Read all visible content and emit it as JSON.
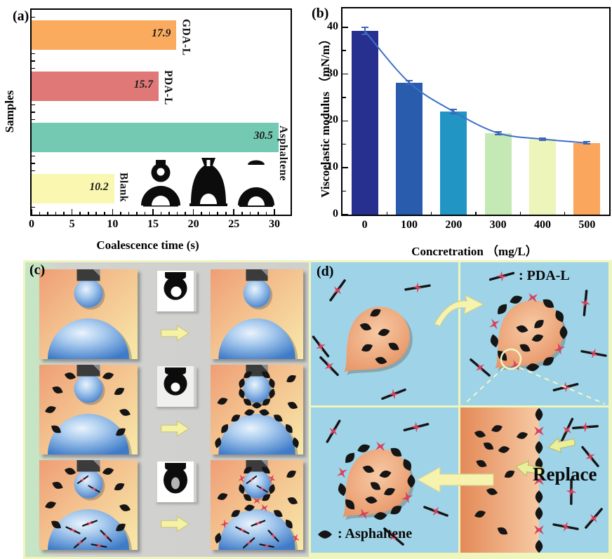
{
  "panels": {
    "a": {
      "tag": "(a)"
    },
    "b": {
      "tag": "(b)"
    },
    "c": {
      "tag": "(c)"
    },
    "d": {
      "tag": "(d)",
      "legend_pdal": ": PDA-L",
      "legend_asphaltene": ": Asphaltene",
      "replace_label": "Replace"
    }
  },
  "chart_data": [
    {
      "type": "bar",
      "orientation": "horizontal",
      "panel": "a",
      "categories": [
        "GDA-L",
        "PDA-L",
        "Asphaltene",
        "Blank"
      ],
      "order": "top-to-bottom",
      "values": [
        17.9,
        15.7,
        30.5,
        10.2
      ],
      "value_labels": [
        "17.9",
        "15.7",
        "30.5",
        "10.2"
      ],
      "bar_colors": [
        "#FAAB5E",
        "#E07878",
        "#74C9B3",
        "#FAF8B0"
      ],
      "xlabel": "Coalescence time (s)",
      "ylabel": "Samples",
      "xlim": [
        0,
        32
      ],
      "xticks": [
        0,
        5,
        10,
        15,
        20,
        25,
        30
      ],
      "grid": false,
      "inset": "three black-and-white droplet coalescence photos"
    },
    {
      "type": "bar",
      "orientation": "vertical",
      "panel": "b",
      "categories": [
        "0",
        "100",
        "200",
        "300",
        "400",
        "500"
      ],
      "values": [
        39.2,
        28.2,
        22.0,
        17.4,
        16.1,
        15.3
      ],
      "errors": [
        0.7,
        0.4,
        0.4,
        0.3,
        0.25,
        0.25
      ],
      "bar_colors": [
        "#27308E",
        "#2A5CAD",
        "#2196C4",
        "#C5E9B4",
        "#EDF5BA",
        "#FAA65C"
      ],
      "curve": {
        "type": "smooth-decay-fit",
        "color": "#3F6FC9"
      },
      "xlabel": "Concretration （mg/L）",
      "ylabel": "Viscoelastic modulus （mN/m）",
      "ylim": [
        0,
        44
      ],
      "yticks": [
        0,
        10,
        20,
        30,
        40
      ],
      "yticks_minor": [
        5,
        15,
        25,
        35
      ],
      "grid": false
    }
  ],
  "colors": {
    "water_blue": "#9FD3E8",
    "panel_divider": "#EEF5BD",
    "oil_light": "#F7C9A4",
    "oil_dark": "#E48B5B",
    "pdal_red": "#D8415A",
    "asphaltene_black": "#151515",
    "droplet_blue": "#3E7BC8",
    "arrow_yellow": "#F5F2A3",
    "error_bar_blue": "#3D64B5"
  }
}
